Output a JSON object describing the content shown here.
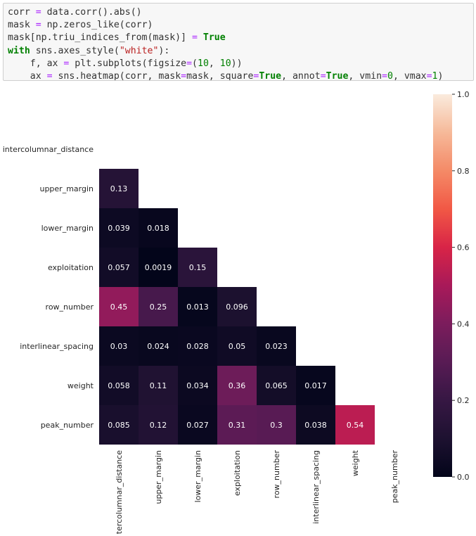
{
  "code_cell": {
    "lines": [
      [
        {
          "t": "corr ",
          "c": "plain"
        },
        {
          "t": "=",
          "c": "op"
        },
        {
          "t": " data.corr().abs()",
          "c": "plain"
        }
      ],
      [
        {
          "t": "mask ",
          "c": "plain"
        },
        {
          "t": "=",
          "c": "op"
        },
        {
          "t": " np.zeros_like(corr)",
          "c": "plain"
        }
      ],
      [
        {
          "t": "mask[np.triu_indices_from(mask)] ",
          "c": "plain"
        },
        {
          "t": "=",
          "c": "op"
        },
        {
          "t": " ",
          "c": "plain"
        },
        {
          "t": "True",
          "c": "kw"
        }
      ],
      [
        {
          "t": "with",
          "c": "kw"
        },
        {
          "t": " sns.axes_style(",
          "c": "plain"
        },
        {
          "t": "\"white\"",
          "c": "str"
        },
        {
          "t": "):",
          "c": "plain"
        }
      ],
      [
        {
          "t": "    f, ax ",
          "c": "plain"
        },
        {
          "t": "=",
          "c": "op"
        },
        {
          "t": " plt.subplots(figsize",
          "c": "plain"
        },
        {
          "t": "=",
          "c": "op"
        },
        {
          "t": "(",
          "c": "plain"
        },
        {
          "t": "10",
          "c": "num"
        },
        {
          "t": ", ",
          "c": "plain"
        },
        {
          "t": "10",
          "c": "num"
        },
        {
          "t": "))",
          "c": "plain"
        }
      ],
      [
        {
          "t": "    ax ",
          "c": "plain"
        },
        {
          "t": "=",
          "c": "op"
        },
        {
          "t": " sns.heatmap(corr, mask",
          "c": "plain"
        },
        {
          "t": "=",
          "c": "op"
        },
        {
          "t": "mask, square",
          "c": "plain"
        },
        {
          "t": "=",
          "c": "op"
        },
        {
          "t": "True",
          "c": "kw"
        },
        {
          "t": ", annot",
          "c": "plain"
        },
        {
          "t": "=",
          "c": "op"
        },
        {
          "t": "True",
          "c": "kw"
        },
        {
          "t": ", vmin",
          "c": "plain"
        },
        {
          "t": "=",
          "c": "op"
        },
        {
          "t": "0",
          "c": "num"
        },
        {
          "t": ", vmax",
          "c": "plain"
        },
        {
          "t": "=",
          "c": "op"
        },
        {
          "t": "1",
          "c": "num"
        },
        {
          "t": ")",
          "c": "plain"
        }
      ]
    ]
  },
  "chart_data": {
    "type": "heatmap",
    "colormap": "rocket",
    "vmin": 0,
    "vmax": 1,
    "masked": "upper-triangle-including-diagonal",
    "rows": [
      "intercolumnar_distance",
      "upper_margin",
      "lower_margin",
      "exploitation",
      "row_number",
      "interlinear_spacing",
      "weight",
      "peak_number"
    ],
    "cols": [
      "intercolumnar_distance",
      "upper_margin",
      "lower_margin",
      "exploitation",
      "row_number",
      "interlinear_spacing",
      "weight",
      "peak_number"
    ],
    "values": [
      [
        null,
        null,
        null,
        null,
        null,
        null,
        null,
        null
      ],
      [
        0.13,
        null,
        null,
        null,
        null,
        null,
        null,
        null
      ],
      [
        0.039,
        0.018,
        null,
        null,
        null,
        null,
        null,
        null
      ],
      [
        0.057,
        0.0019,
        0.15,
        null,
        null,
        null,
        null,
        null
      ],
      [
        0.45,
        0.25,
        0.013,
        0.096,
        null,
        null,
        null,
        null
      ],
      [
        0.03,
        0.024,
        0.028,
        0.05,
        0.023,
        null,
        null,
        null
      ],
      [
        0.058,
        0.11,
        0.034,
        0.36,
        0.065,
        0.017,
        null,
        null
      ],
      [
        0.085,
        0.12,
        0.027,
        0.31,
        0.3,
        0.038,
        0.54,
        null
      ]
    ],
    "colorbar": {
      "ticks": [
        0.0,
        0.2,
        0.4,
        0.6,
        0.8,
        1.0
      ],
      "tick_labels": [
        "0.0",
        "0.2",
        "0.4",
        "0.6",
        "0.8",
        "1.0"
      ]
    },
    "grid": false
  }
}
